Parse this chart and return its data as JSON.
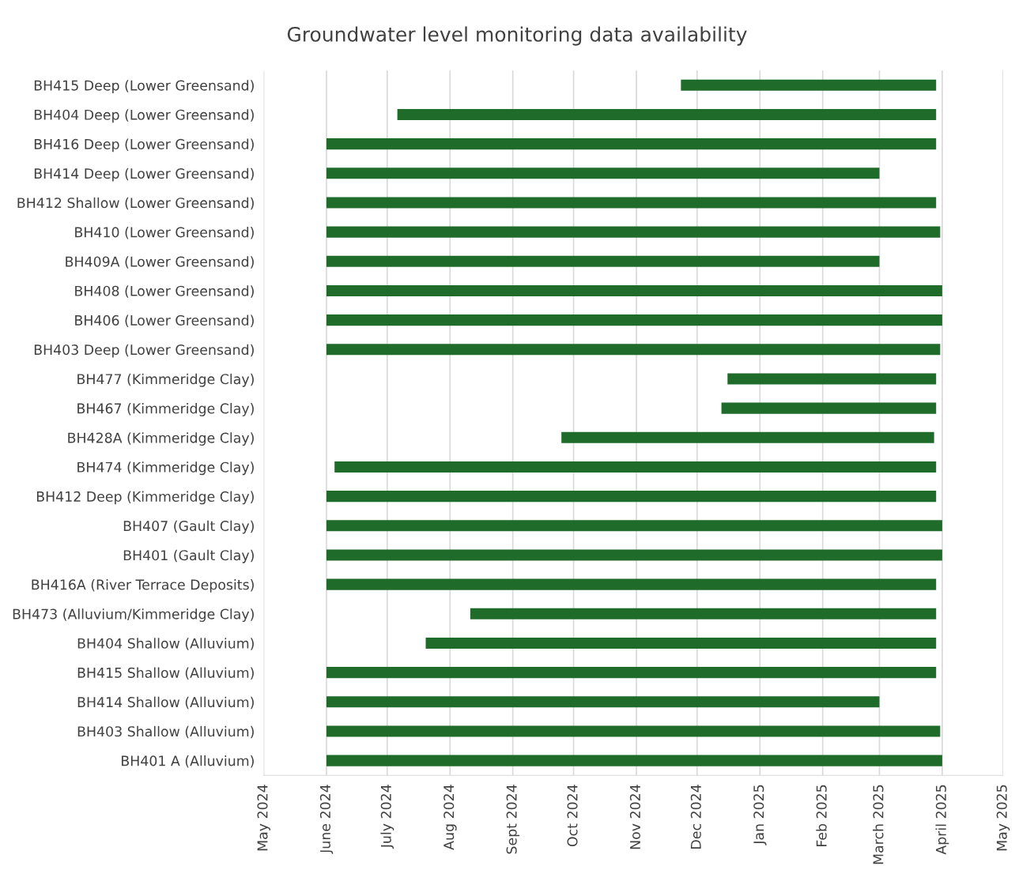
{
  "chart_data": {
    "type": "bar",
    "orientation": "horizontal",
    "title": "Groundwater level monitoring data availability",
    "categories": [
      "BH415 Deep (Lower Greensand)",
      "BH404 Deep (Lower Greensand)",
      "BH416 Deep (Lower Greensand)",
      "BH414 Deep (Lower Greensand)",
      "BH412 Shallow (Lower Greensand)",
      "BH410 (Lower Greensand)",
      "BH409A (Lower Greensand)",
      "BH408 (Lower Greensand)",
      "BH406 (Lower Greensand)",
      "BH403 Deep (Lower Greensand)",
      "BH477 (Kimmeridge Clay)",
      "BH467 (Kimmeridge Clay)",
      "BH428A (Kimmeridge Clay)",
      "BH474 (Kimmeridge Clay)",
      "BH412 Deep (Kimmeridge Clay)",
      "BH407 (Gault Clay)",
      "BH401 (Gault Clay)",
      "BH416A (River Terrace Deposits)",
      "BH473 (Alluvium/Kimmeridge Clay)",
      "BH404 Shallow (Alluvium)",
      "BH415 Shallow (Alluvium)",
      "BH414 Shallow (Alluvium)",
      "BH403 Shallow (Alluvium)",
      "BH401 A (Alluvium)"
    ],
    "base": [
      20050,
      19910,
      19875,
      19875,
      19875,
      19875,
      19875,
      19875,
      19875,
      19875,
      20073,
      20070,
      19991,
      19879,
      19875,
      19875,
      19875,
      19875,
      19946,
      19924,
      19875,
      19875,
      19875,
      19875
    ],
    "values": [
      126,
      266,
      301,
      273,
      301,
      303,
      273,
      304,
      304,
      303,
      103,
      106,
      184,
      297,
      301,
      304,
      304,
      301,
      230,
      252,
      301,
      273,
      303,
      304
    ],
    "color": "#1e6b2a",
    "xlim": [
      "2024-05-01",
      "2025-05-01"
    ],
    "xticks": [
      {
        "value": "2024-05-01",
        "label": "May 2024"
      },
      {
        "value": "2024-06-01",
        "label": "June 2024"
      },
      {
        "value": "2024-07-01",
        "label": "July 2024"
      },
      {
        "value": "2024-08-01",
        "label": "Aug 2024"
      },
      {
        "value": "2024-09-01",
        "label": "Sept 2024"
      },
      {
        "value": "2024-10-01",
        "label": "Oct 2024"
      },
      {
        "value": "2024-11-01",
        "label": "Nov 2024"
      },
      {
        "value": "2024-12-01",
        "label": "Dec 2024"
      },
      {
        "value": "2025-01-01",
        "label": "Jan 2025"
      },
      {
        "value": "2025-02-01",
        "label": "Feb 2025"
      },
      {
        "value": "2025-03-01",
        "label": "March 2025"
      },
      {
        "value": "2025-04-01",
        "label": "April 2025"
      },
      {
        "value": "2025-05-01",
        "label": "May 2025"
      }
    ],
    "grid": "x",
    "legend": false
  }
}
